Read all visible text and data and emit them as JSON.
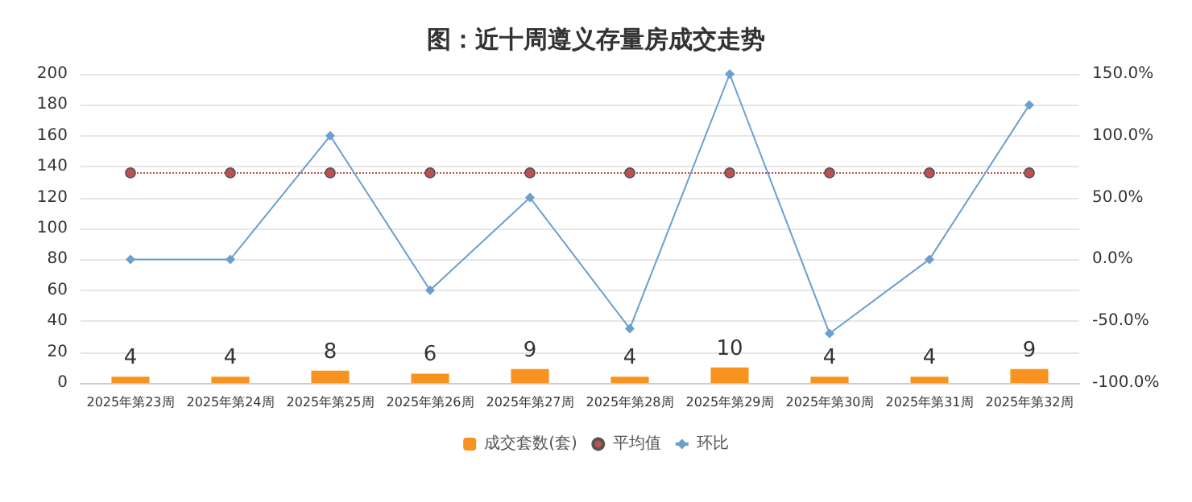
{
  "chart_data": {
    "type": "bar",
    "title": "图：近十周遵义存量房成交走势",
    "categories": [
      "2025年第23周",
      "2025年第24周",
      "2025年第25周",
      "2025年第26周",
      "2025年第27周",
      "2025年第28周",
      "2025年第29周",
      "2025年第30周",
      "2025年第31周",
      "2025年第32周"
    ],
    "series": [
      {
        "name": "成交套数(套)",
        "color": "#f7931e",
        "values": [
          4,
          4,
          8,
          6,
          9,
          4,
          10,
          4,
          4,
          9
        ],
        "value_labels": [
          "4",
          "4",
          "8",
          "6",
          "9",
          "4",
          "10",
          "4",
          "4",
          "9"
        ]
      },
      {
        "name": "平均值",
        "type": "line",
        "color": "#c0504d",
        "marker": "circle",
        "line_style": "dotted",
        "values": [
          136,
          136,
          136,
          136,
          136,
          136,
          136,
          136,
          136,
          136
        ]
      },
      {
        "name": "环比",
        "type": "line",
        "axis": "y2",
        "color": "#6a9fcf",
        "marker": "diamond",
        "line_style": "solid",
        "values": [
          0,
          0,
          100,
          -25,
          50,
          -56,
          150,
          -60,
          0,
          125
        ]
      }
    ],
    "ylim": [
      0,
      200
    ],
    "yticks": [
      0,
      20,
      40,
      60,
      80,
      100,
      120,
      140,
      160,
      180,
      200
    ],
    "y2lim": [
      -100,
      150
    ],
    "y2ticks": [
      {
        "value": -100,
        "label": "-100.0%"
      },
      {
        "value": -50,
        "label": "-50.0%"
      },
      {
        "value": 0,
        "label": "0.0%"
      },
      {
        "value": 50,
        "label": "50.0%"
      },
      {
        "value": 100,
        "label": "100.0%"
      },
      {
        "value": 150,
        "label": "150.0%"
      }
    ],
    "grid": "y",
    "legend": "bottom"
  }
}
